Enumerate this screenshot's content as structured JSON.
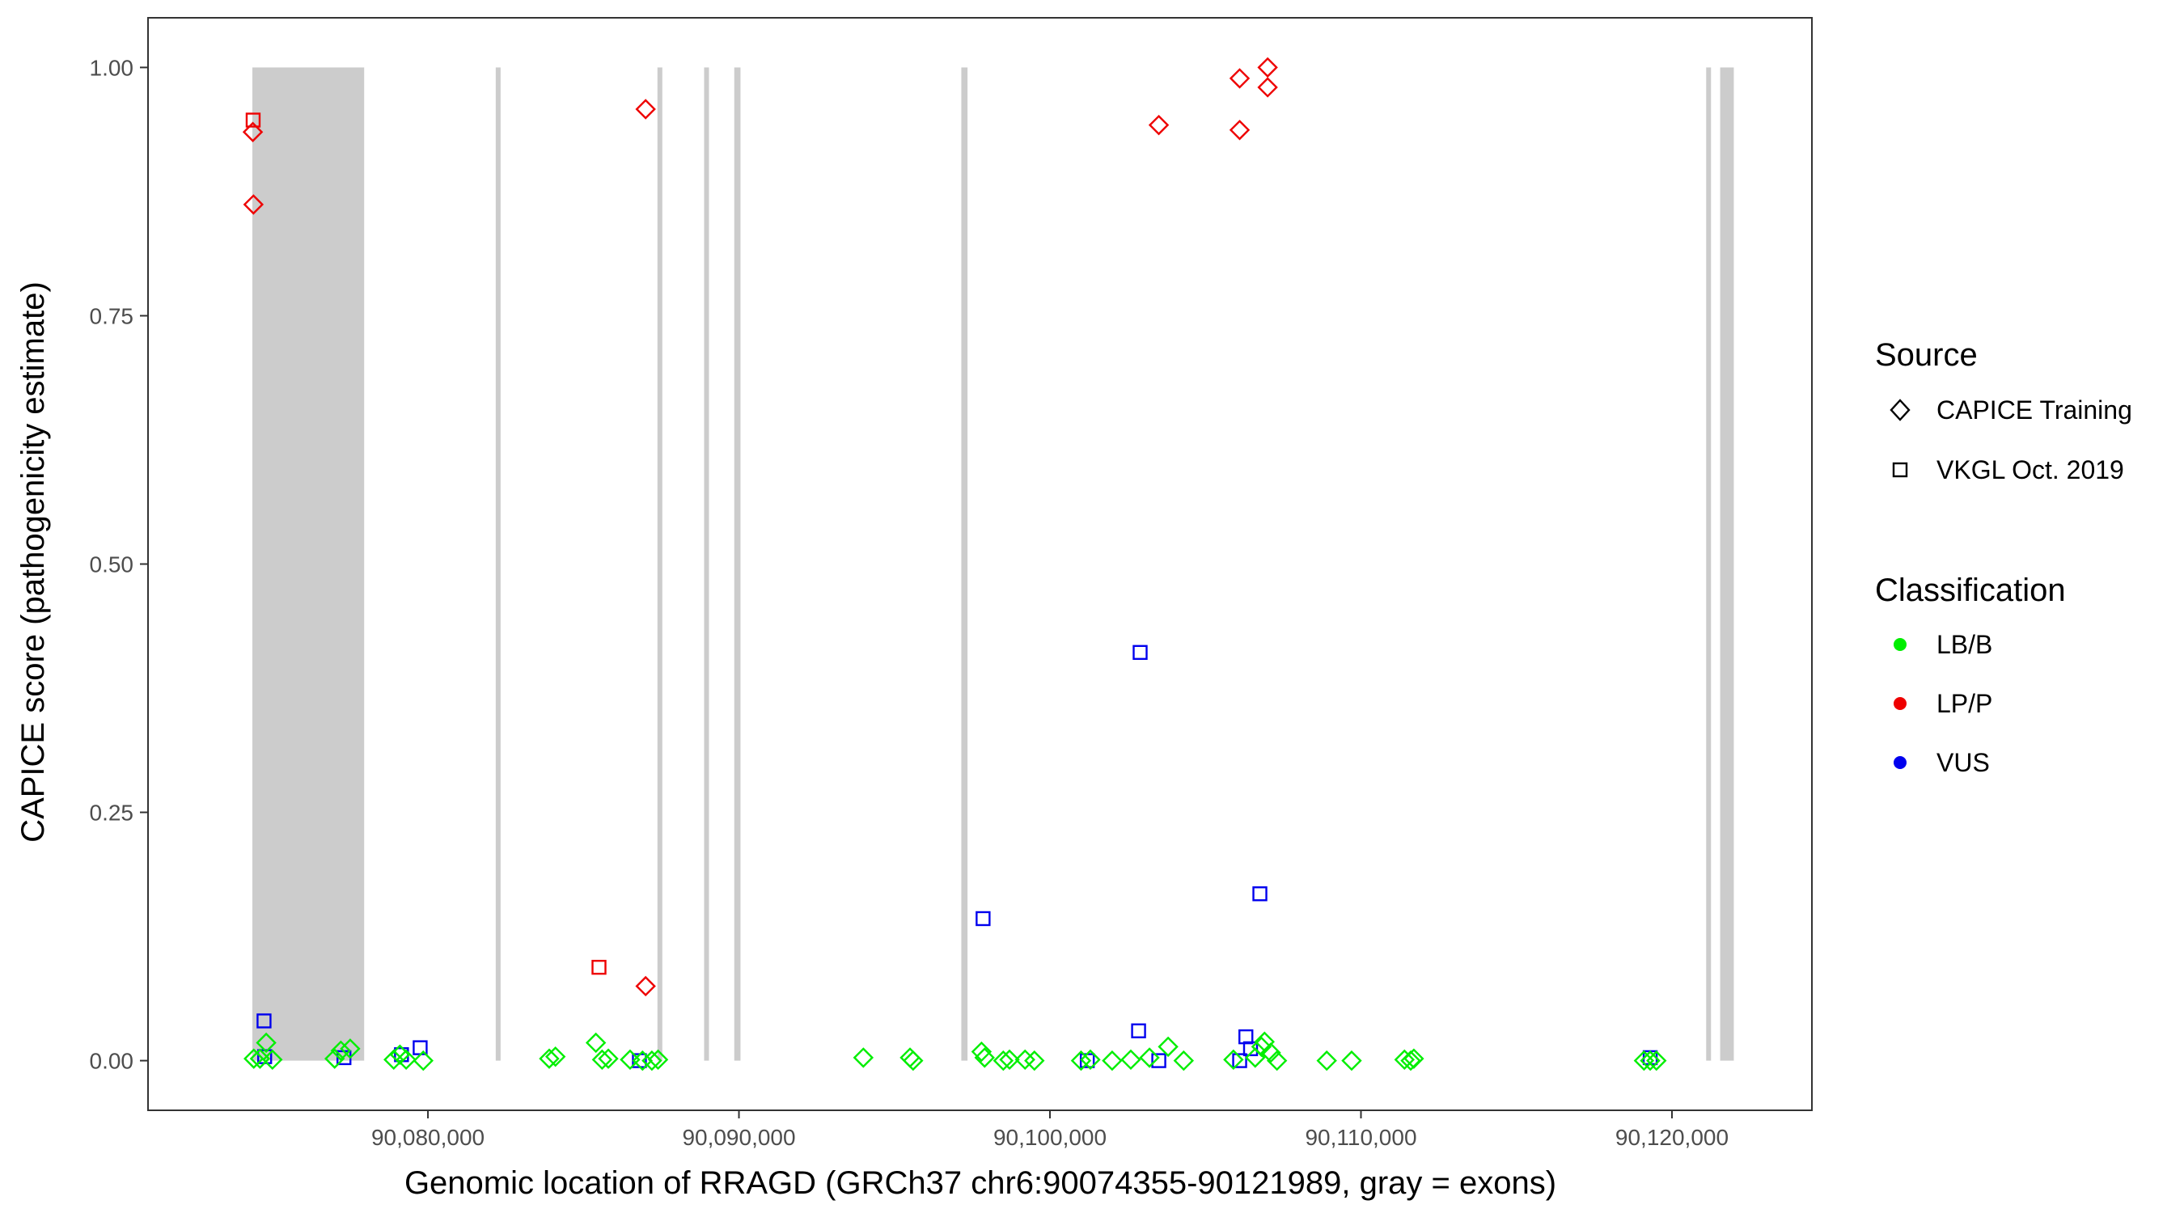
{
  "chart_data": {
    "type": "scatter",
    "xlabel": "Genomic location of RRAGD (GRCh37 chr6:90074355-90121989, gray = exons)",
    "ylabel": "CAPICE score (pathogenicity estimate)",
    "xlim": [
      90071000,
      90124500
    ],
    "ylim": [
      -0.05,
      1.05
    ],
    "x_ticks": [
      90080000,
      90090000,
      90100000,
      90110000,
      90120000
    ],
    "x_tick_labels": [
      "90,080,000",
      "90,090,000",
      "90,100,000",
      "90,110,000",
      "90,120,000"
    ],
    "y_ticks": [
      0,
      0.25,
      0.5,
      0.75,
      1
    ],
    "y_tick_labels": [
      "0.00",
      "0.25",
      "0.50",
      "0.75",
      "1.00"
    ],
    "grid": false,
    "legend_position": "right",
    "exons": [
      [
        90074355,
        90077950
      ],
      [
        90082180,
        90082300
      ],
      [
        90087380,
        90087500
      ],
      [
        90088880,
        90089000
      ],
      [
        90089850,
        90090050
      ],
      [
        90097150,
        90097350
      ],
      [
        90121100,
        90121250
      ],
      [
        90121550,
        90121989
      ]
    ],
    "exon_color": "#cccccc",
    "colors": {
      "LB/B": "#00ee00",
      "LP/P": "#ee0000",
      "VUS": "#0000ee"
    },
    "legend": {
      "source_title": "Source",
      "source_items": [
        {
          "label": "CAPICE Training",
          "shape": "diamond"
        },
        {
          "label": "VKGL Oct. 2019",
          "shape": "square"
        }
      ],
      "classification_title": "Classification",
      "classification_items": [
        {
          "label": "LB/B",
          "color": "#00ee00"
        },
        {
          "label": "LP/P",
          "color": "#ee0000"
        },
        {
          "label": "VUS",
          "color": "#0000ee"
        }
      ]
    },
    "series": [
      {
        "source": "CAPICE Training",
        "class": "LP/P",
        "points": [
          [
            90074370,
            0.935
          ],
          [
            90074390,
            0.862
          ],
          [
            90087000,
            0.958
          ],
          [
            90087000,
            0.075
          ],
          [
            90103500,
            0.942
          ],
          [
            90106100,
            0.989
          ],
          [
            90106100,
            0.937
          ],
          [
            90107000,
            1.0
          ],
          [
            90107000,
            0.98
          ]
        ]
      },
      {
        "source": "VKGL Oct. 2019",
        "class": "LP/P",
        "points": [
          [
            90074380,
            0.947
          ],
          [
            90085500,
            0.094
          ]
        ]
      },
      {
        "source": "VKGL Oct. 2019",
        "class": "VUS",
        "points": [
          [
            90074730,
            0.04
          ],
          [
            90074750,
            0.004
          ],
          [
            90077300,
            0.003
          ],
          [
            90079150,
            0.006
          ],
          [
            90079750,
            0.013
          ],
          [
            90086800,
            0.0
          ],
          [
            90097850,
            0.143
          ],
          [
            90101200,
            0.0
          ],
          [
            90102900,
            0.411
          ],
          [
            90102850,
            0.03
          ],
          [
            90103500,
            0.0
          ],
          [
            90106100,
            0.0
          ],
          [
            90106300,
            0.024
          ],
          [
            90106450,
            0.012
          ],
          [
            90106750,
            0.168
          ],
          [
            90119300,
            0.003
          ]
        ]
      },
      {
        "source": "CAPICE Training",
        "class": "LB/B",
        "points": [
          [
            90074400,
            0.002
          ],
          [
            90074600,
            0.002
          ],
          [
            90074800,
            0.018
          ],
          [
            90075000,
            0.001
          ],
          [
            90077000,
            0.002
          ],
          [
            90077200,
            0.01
          ],
          [
            90077500,
            0.012
          ],
          [
            90078900,
            0.001
          ],
          [
            90079100,
            0.006
          ],
          [
            90079300,
            0.001
          ],
          [
            90079850,
            0.0
          ],
          [
            90083900,
            0.002
          ],
          [
            90084100,
            0.004
          ],
          [
            90085400,
            0.018
          ],
          [
            90085600,
            0.001
          ],
          [
            90085800,
            0.002
          ],
          [
            90086500,
            0.001
          ],
          [
            90086900,
            0.0
          ],
          [
            90087200,
            0.0
          ],
          [
            90087400,
            0.001
          ],
          [
            90094000,
            0.003
          ],
          [
            90095500,
            0.003
          ],
          [
            90095600,
            0.0
          ],
          [
            90097800,
            0.009
          ],
          [
            90097900,
            0.003
          ],
          [
            90098500,
            0.0
          ],
          [
            90098700,
            0.001
          ],
          [
            90099200,
            0.001
          ],
          [
            90099500,
            0.0
          ],
          [
            90101000,
            0.0
          ],
          [
            90101300,
            0.001
          ],
          [
            90102000,
            0.0
          ],
          [
            90102600,
            0.001
          ],
          [
            90103200,
            0.003
          ],
          [
            90103800,
            0.014
          ],
          [
            90104300,
            0.0
          ],
          [
            90105900,
            0.001
          ],
          [
            90106600,
            0.003
          ],
          [
            90106800,
            0.014
          ],
          [
            90106900,
            0.019
          ],
          [
            90107100,
            0.008
          ],
          [
            90107300,
            0.0
          ],
          [
            90108900,
            0.0
          ],
          [
            90109700,
            0.0
          ],
          [
            90111400,
            0.001
          ],
          [
            90111600,
            0.0
          ],
          [
            90111700,
            0.002
          ],
          [
            90119100,
            0.0
          ],
          [
            90119300,
            0.0
          ],
          [
            90119500,
            0.0
          ]
        ]
      }
    ]
  }
}
